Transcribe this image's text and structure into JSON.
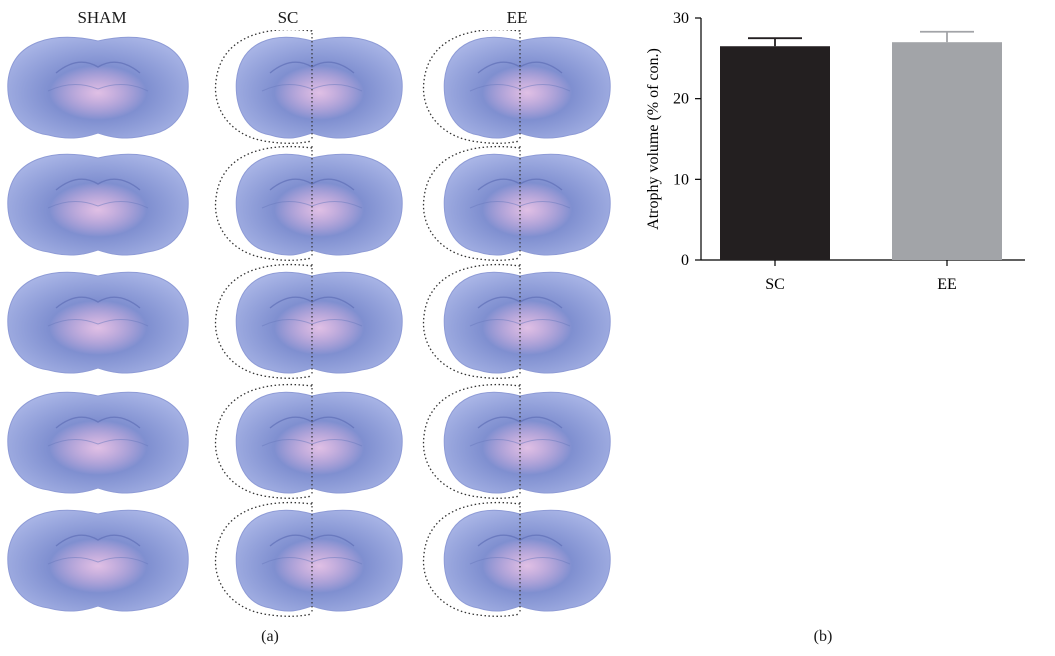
{
  "panel_a": {
    "columns": [
      "SHAM",
      "SC",
      "EE"
    ],
    "rows": 5,
    "label": "(a)"
  },
  "panel_b": {
    "label": "(b)"
  },
  "colors": {
    "tissue": "#7f8fd0",
    "tissue_light": "#a9b5e6",
    "tissue_pink": "#c68ccf",
    "bar_sc": "#231f20",
    "bar_ee": "#a2a4a8"
  },
  "chart_data": {
    "type": "bar",
    "categories": [
      "SC",
      "EE"
    ],
    "values": [
      26.5,
      27.0
    ],
    "errors": [
      1.0,
      1.3
    ],
    "ylabel": "Atrophy volume (% of con.)",
    "xlabel": "",
    "title": "",
    "ylim": [
      0,
      30
    ],
    "yticks": [
      0,
      10,
      20,
      30
    ],
    "grid": false
  }
}
